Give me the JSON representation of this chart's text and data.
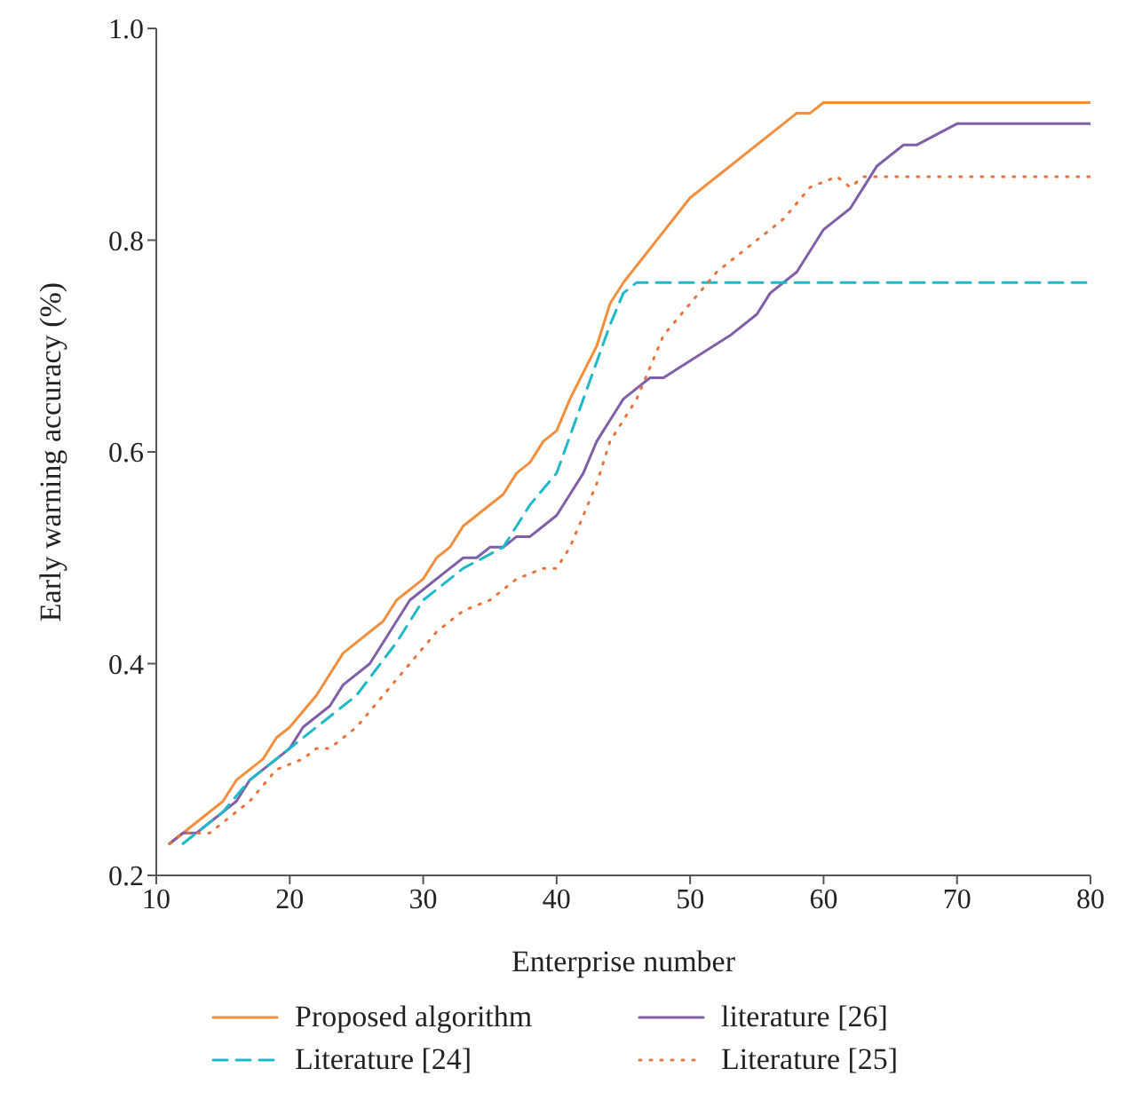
{
  "chart_data": {
    "type": "line",
    "xlabel": "Enterprise number",
    "ylabel": "Early warning accuracy (%)",
    "xlim": [
      10,
      80
    ],
    "xticks": [
      10,
      20,
      30,
      40,
      50,
      60,
      70,
      80
    ],
    "ylim": [
      0.2,
      1.0
    ],
    "yticks": [
      0.2,
      0.4,
      0.6,
      0.8,
      {
        "value": 1.0,
        "label": "1.0"
      }
    ],
    "legend": "bottom",
    "marker": "none",
    "grid": false,
    "series": [
      {
        "name": "Proposed algorithm",
        "color": "#f28e3c",
        "line_style": "solid",
        "x": [
          11,
          15,
          16,
          18,
          19,
          20,
          22,
          24,
          25,
          27,
          28,
          30,
          31,
          32,
          33,
          36,
          37,
          38,
          39,
          40,
          41,
          43,
          44,
          45,
          50,
          58,
          59,
          60,
          80
        ],
        "values": [
          0.23,
          0.27,
          0.29,
          0.31,
          0.33,
          0.34,
          0.37,
          0.41,
          0.42,
          0.44,
          0.46,
          0.48,
          0.5,
          0.51,
          0.53,
          0.56,
          0.58,
          0.59,
          0.61,
          0.62,
          0.65,
          0.7,
          0.74,
          0.76,
          0.84,
          0.92,
          0.92,
          0.93,
          0.93
        ]
      },
      {
        "name": "literature [26]",
        "color": "#7e5fa8",
        "line_style": "solid",
        "x": [
          11,
          12,
          13,
          15,
          16,
          17,
          19,
          20,
          21,
          23,
          24,
          26,
          28,
          29,
          30,
          32,
          33,
          34,
          35,
          36,
          37,
          38,
          39,
          40,
          41,
          42,
          43,
          44,
          45,
          46,
          47,
          48,
          53,
          55,
          56,
          58,
          60,
          62,
          63,
          64,
          66,
          67,
          70,
          80
        ],
        "values": [
          0.23,
          0.24,
          0.24,
          0.26,
          0.27,
          0.29,
          0.31,
          0.32,
          0.34,
          0.36,
          0.38,
          0.4,
          0.44,
          0.46,
          0.47,
          0.49,
          0.5,
          0.5,
          0.51,
          0.51,
          0.52,
          0.52,
          0.53,
          0.54,
          0.56,
          0.58,
          0.61,
          0.63,
          0.65,
          0.66,
          0.67,
          0.67,
          0.71,
          0.73,
          0.75,
          0.77,
          0.81,
          0.83,
          0.85,
          0.87,
          0.89,
          0.89,
          0.91,
          0.91
        ]
      },
      {
        "name": "Literature [24]",
        "color": "#1fb8c9",
        "line_style": "dashed",
        "x": [
          12,
          15,
          17,
          20,
          22,
          25,
          28,
          30,
          33,
          36,
          38,
          40,
          42,
          44,
          45,
          46,
          80
        ],
        "values": [
          0.23,
          0.26,
          0.29,
          0.32,
          0.34,
          0.37,
          0.42,
          0.46,
          0.49,
          0.51,
          0.55,
          0.58,
          0.65,
          0.72,
          0.75,
          0.76,
          0.76
        ]
      },
      {
        "name": "Literature [25]",
        "color": "#e8733a",
        "line_style": "dotted",
        "x": [
          11,
          12,
          14,
          15,
          17,
          19,
          21,
          22,
          23,
          25,
          27,
          29,
          31,
          33,
          35,
          37,
          39,
          40,
          41,
          43,
          44,
          46,
          47,
          48,
          50,
          52,
          54,
          55,
          57,
          59,
          61,
          62,
          63,
          80
        ],
        "values": [
          0.23,
          0.24,
          0.24,
          0.25,
          0.27,
          0.3,
          0.31,
          0.32,
          0.32,
          0.34,
          0.37,
          0.4,
          0.43,
          0.45,
          0.46,
          0.48,
          0.49,
          0.49,
          0.51,
          0.57,
          0.61,
          0.65,
          0.68,
          0.71,
          0.74,
          0.77,
          0.79,
          0.8,
          0.82,
          0.85,
          0.86,
          0.85,
          0.86,
          0.86
        ]
      }
    ]
  }
}
